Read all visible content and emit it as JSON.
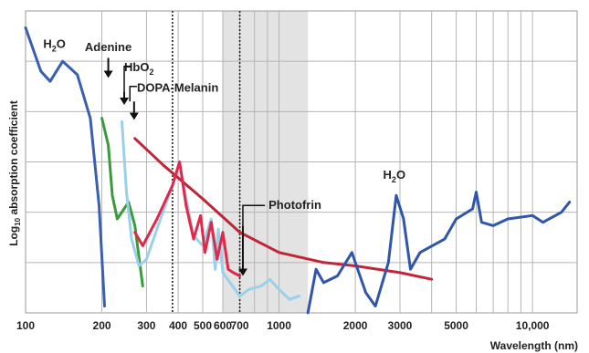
{
  "chart_data": {
    "type": "line",
    "xscale": "log",
    "xlim": [
      100,
      15000
    ],
    "grid": true,
    "xlabel": "Wavelength (nm)",
    "ylabel_pre": "Log",
    "ylabel_sub": "10",
    "ylabel_post": " absorption coefficient",
    "xticks": [
      {
        "value": 100,
        "label": "100"
      },
      {
        "value": 200,
        "label": "200"
      },
      {
        "value": 300,
        "label": "300"
      },
      {
        "value": 400,
        "label": "400"
      },
      {
        "value": 500,
        "label": "500"
      },
      {
        "value": 600,
        "label": "600"
      },
      {
        "value": 700,
        "label": "700"
      },
      {
        "value": 1000,
        "label": "1000"
      },
      {
        "value": 2000,
        "label": "2000"
      },
      {
        "value": 3000,
        "label": "3000"
      },
      {
        "value": 5000,
        "label": "5000"
      },
      {
        "value": 10000,
        "label": "10,000"
      }
    ],
    "shaded_region": [
      600,
      1300
    ],
    "dotted_lines": [
      380,
      700
    ],
    "series": [
      {
        "name": "H2O",
        "color": "#3a5fae",
        "points": [
          [
            100,
            8.5
          ],
          [
            115,
            7.2
          ],
          [
            125,
            6.9
          ],
          [
            140,
            7.5
          ],
          [
            160,
            7.1
          ],
          [
            180,
            5.8
          ],
          [
            195,
            3.2
          ],
          [
            205,
            0.2
          ]
        ]
      },
      {
        "name": "Adenine",
        "color": "#3a9a3c",
        "points": [
          [
            200,
            5.8
          ],
          [
            212,
            5.0
          ],
          [
            220,
            3.5
          ],
          [
            230,
            2.8
          ],
          [
            255,
            3.3
          ],
          [
            270,
            2.6
          ],
          [
            290,
            0.8
          ]
        ]
      },
      {
        "name": "HbO2",
        "color": "#9ad0e8",
        "points": [
          [
            240,
            5.7
          ],
          [
            250,
            3.6
          ],
          [
            262,
            2.2
          ],
          [
            280,
            1.4
          ],
          [
            300,
            1.6
          ],
          [
            330,
            2.5
          ],
          [
            380,
            3.8
          ],
          [
            405,
            4.5
          ],
          [
            420,
            3.8
          ],
          [
            460,
            2.3
          ],
          [
            500,
            2.0
          ],
          [
            540,
            2.8
          ],
          [
            560,
            1.3
          ],
          [
            576,
            2.5
          ],
          [
            600,
            1.2
          ],
          [
            700,
            0.5
          ],
          [
            760,
            0.7
          ],
          [
            850,
            0.8
          ],
          [
            920,
            1.0
          ],
          [
            1000,
            0.7
          ],
          [
            1100,
            0.4
          ],
          [
            1200,
            0.5
          ]
        ]
      },
      {
        "name": "DOPA-Melanin",
        "color": "#c02538",
        "points": [
          [
            270,
            5.2
          ],
          [
            350,
            4.4
          ],
          [
            500,
            3.4
          ],
          [
            700,
            2.4
          ],
          [
            1000,
            1.8
          ],
          [
            1500,
            1.5
          ],
          [
            2000,
            1.4
          ],
          [
            3000,
            1.2
          ],
          [
            4000,
            1.0
          ]
        ]
      },
      {
        "name": "Photofrin",
        "color": "#e0284a",
        "points": [
          [
            270,
            2.4
          ],
          [
            290,
            2.0
          ],
          [
            330,
            2.8
          ],
          [
            380,
            3.8
          ],
          [
            405,
            4.5
          ],
          [
            430,
            3.2
          ],
          [
            460,
            2.2
          ],
          [
            490,
            2.9
          ],
          [
            510,
            1.8
          ],
          [
            540,
            2.7
          ],
          [
            570,
            1.6
          ],
          [
            600,
            2.4
          ],
          [
            630,
            1.3
          ],
          [
            660,
            1.2
          ],
          [
            700,
            1.1
          ]
        ]
      },
      {
        "name": "H2O",
        "color": "#2f56a8",
        "points": [
          [
            1300,
            0
          ],
          [
            1400,
            1.3
          ],
          [
            1500,
            0.9
          ],
          [
            1700,
            1.1
          ],
          [
            1940,
            1.8
          ],
          [
            2000,
            1.5
          ],
          [
            2200,
            0.6
          ],
          [
            2400,
            0.2
          ],
          [
            2700,
            1.5
          ],
          [
            2900,
            3.5
          ],
          [
            3100,
            2.8
          ],
          [
            3300,
            1.3
          ],
          [
            3600,
            1.8
          ],
          [
            4500,
            2.2
          ],
          [
            5000,
            2.8
          ],
          [
            5800,
            3.1
          ],
          [
            6000,
            3.6
          ],
          [
            6300,
            2.7
          ],
          [
            7000,
            2.6
          ],
          [
            8000,
            2.8
          ],
          [
            10000,
            2.9
          ],
          [
            11000,
            2.7
          ],
          [
            13000,
            3.0
          ],
          [
            14000,
            3.3
          ]
        ]
      }
    ],
    "labels": [
      {
        "text": "H",
        "sub": "2",
        "tail": "O",
        "x": 130,
        "y": 7.9
      },
      {
        "text": "Adenine",
        "sub": "",
        "tail": "",
        "x": 212,
        "y": 7.8
      },
      {
        "text": "HbO",
        "sub": "2",
        "tail": "",
        "x": 245,
        "y": 7.2
      },
      {
        "text": "DOPA-Melanin",
        "sub": "",
        "tail": "",
        "x": 275,
        "y": 6.6
      },
      {
        "text": "Photofrin",
        "sub": "",
        "tail": "",
        "x": 900,
        "y": 3.1
      },
      {
        "text": "H",
        "sub": "2",
        "tail": "O",
        "x": 2850,
        "y": 4.0
      }
    ]
  }
}
